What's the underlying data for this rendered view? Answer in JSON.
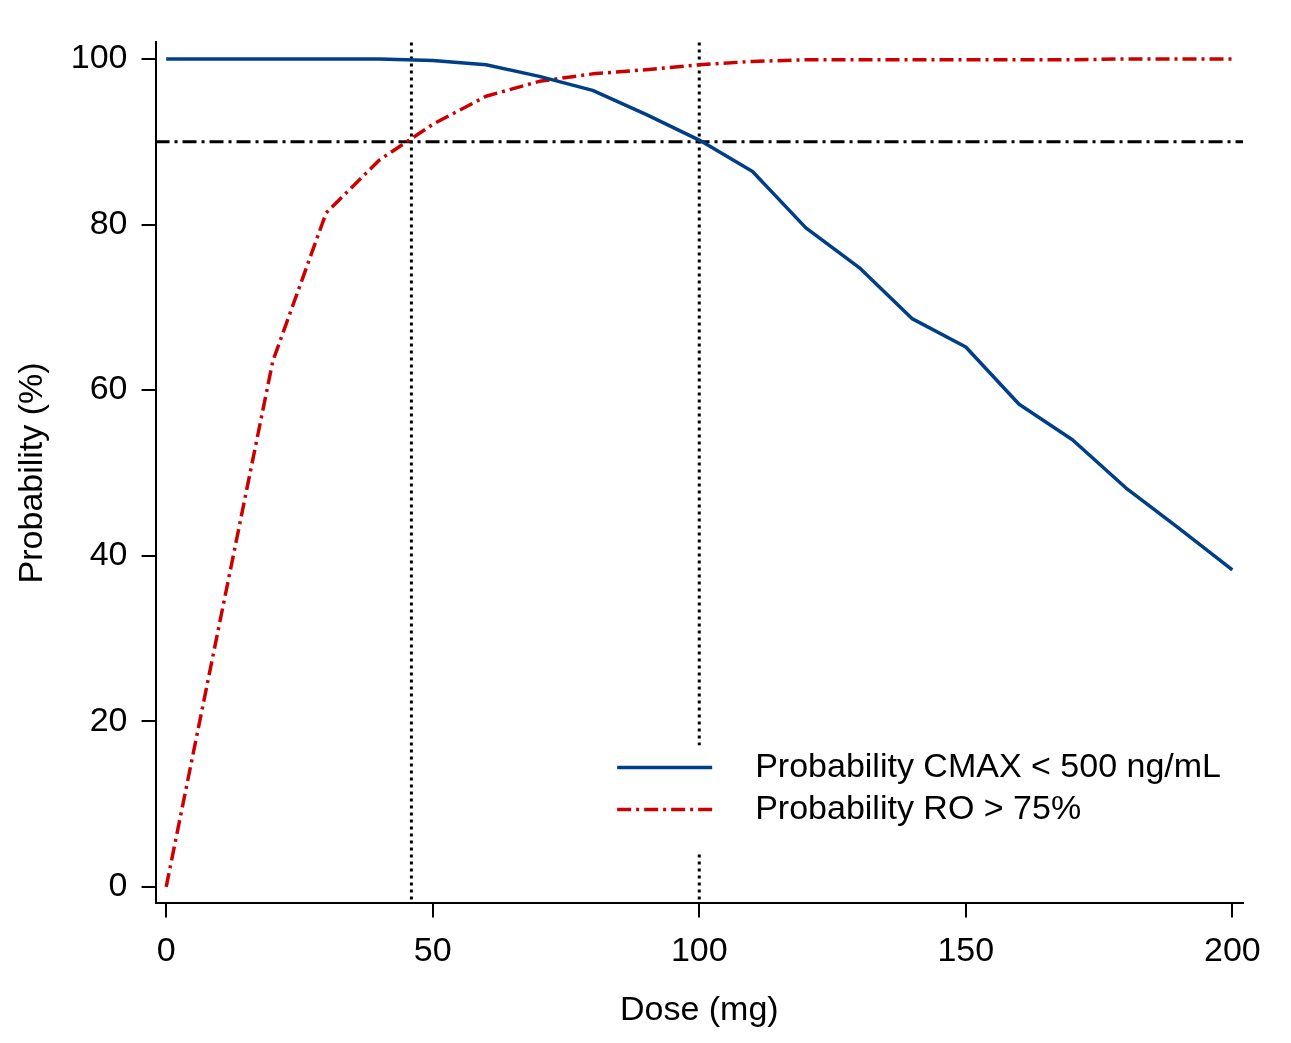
{
  "chart_data": {
    "type": "line",
    "xlabel": "Dose (mg)",
    "ylabel": "Probability (%)",
    "x": [
      0,
      10,
      20,
      30,
      40,
      50,
      60,
      70,
      80,
      90,
      100,
      110,
      120,
      130,
      140,
      150,
      160,
      170,
      180,
      190,
      200
    ],
    "series": [
      {
        "name": "Probability CMAX < 500 ng/mL",
        "color": "#003f87",
        "line_style": "solid",
        "values": [
          100,
          100,
          100,
          100,
          100,
          99.8,
          99.3,
          97.9,
          96.2,
          93.3,
          90.2,
          86.4,
          79.6,
          74.8,
          68.6,
          65.2,
          58.3,
          54.0,
          48.2,
          43.3,
          38.3
        ]
      },
      {
        "name": "Probability RO > 75%",
        "color": "#cc0000",
        "line_style": "dashed",
        "values": [
          0,
          31.8,
          63.5,
          81.4,
          87.8,
          92.1,
          95.5,
          97.3,
          98.2,
          98.7,
          99.3,
          99.7,
          99.9,
          99.9,
          99.9,
          99.9,
          99.9,
          99.9,
          100,
          100,
          100
        ]
      }
    ],
    "xlim": [
      -2,
      202
    ],
    "xticks": [
      0,
      50,
      100,
      150,
      200
    ],
    "ylim": [
      -2,
      102
    ],
    "yticks": [
      0,
      20,
      40,
      60,
      80,
      100
    ],
    "ref_lines": [
      {
        "axis": "y",
        "value": 90,
        "color": "#000000",
        "line_style": "dashed"
      },
      {
        "axis": "x",
        "value": 46,
        "color": "#000000",
        "line_style": "dotted"
      },
      {
        "axis": "x",
        "value": 100,
        "color": "#000000",
        "line_style": "dotted"
      }
    ],
    "grid": false,
    "marker": "none",
    "legend": "bottom right"
  }
}
